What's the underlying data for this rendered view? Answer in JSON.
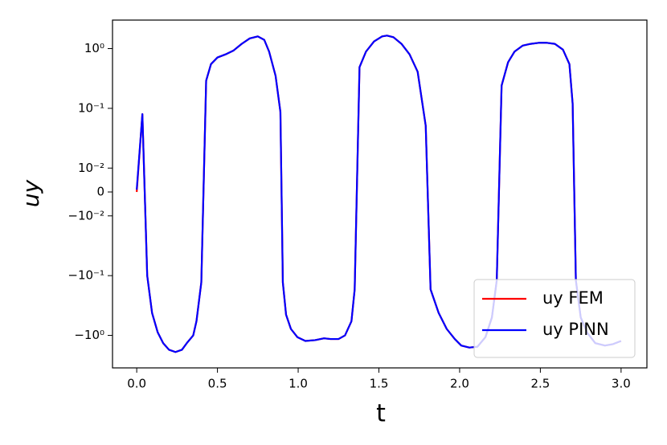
{
  "chart_data": {
    "type": "line",
    "xlabel": "t",
    "ylabel": "uy",
    "x": [
      0,
      0.035,
      0.065,
      0.095,
      0.13,
      0.164,
      0.2,
      0.24,
      0.28,
      0.31,
      0.35,
      0.37,
      0.4,
      0.43,
      0.46,
      0.5,
      0.55,
      0.6,
      0.65,
      0.7,
      0.75,
      0.79,
      0.82,
      0.86,
      0.89,
      0.905,
      0.925,
      0.955,
      0.995,
      1.045,
      1.105,
      1.16,
      1.2,
      1.25,
      1.29,
      1.33,
      1.35,
      1.38,
      1.42,
      1.47,
      1.52,
      1.55,
      1.59,
      1.64,
      1.69,
      1.74,
      1.79,
      1.82,
      1.87,
      1.92,
      1.97,
      2.01,
      2.06,
      2.11,
      2.16,
      2.2,
      2.23,
      2.26,
      2.3,
      2.34,
      2.39,
      2.44,
      2.49,
      2.54,
      2.59,
      2.64,
      2.68,
      2.7,
      2.72,
      2.75,
      2.79,
      2.84,
      2.9,
      2.95,
      3.0
    ],
    "series": [
      {
        "name": "uy FEM",
        "color": "#ff0000",
        "values": [
          0,
          0.08,
          -0.1,
          -0.42,
          -0.89,
          -1.35,
          -1.74,
          -1.9,
          -1.74,
          -1.35,
          -1.0,
          -0.58,
          -0.13,
          0.29,
          0.55,
          0.71,
          0.8,
          0.93,
          1.2,
          1.48,
          1.6,
          1.4,
          0.89,
          0.35,
          0.087,
          -0.13,
          -0.45,
          -0.78,
          -1.07,
          -1.24,
          -1.2,
          -1.12,
          -1.15,
          -1.15,
          -1.0,
          -0.58,
          -0.17,
          0.49,
          0.89,
          1.32,
          1.6,
          1.65,
          1.55,
          1.2,
          0.8,
          0.41,
          0.051,
          -0.17,
          -0.42,
          -0.78,
          -1.15,
          -1.48,
          -1.6,
          -1.55,
          -1.07,
          -0.5,
          -0.12,
          0.24,
          0.59,
          0.89,
          1.12,
          1.2,
          1.25,
          1.25,
          1.2,
          0.96,
          0.55,
          0.12,
          -0.12,
          -0.5,
          -0.9,
          -1.35,
          -1.48,
          -1.4,
          -1.24
        ]
      },
      {
        "name": "uy PINN",
        "color": "#0000ff",
        "values": [
          0.001,
          0.08,
          -0.1,
          -0.42,
          -0.89,
          -1.35,
          -1.74,
          -1.9,
          -1.74,
          -1.35,
          -1.0,
          -0.58,
          -0.13,
          0.29,
          0.55,
          0.71,
          0.8,
          0.93,
          1.2,
          1.48,
          1.6,
          1.4,
          0.89,
          0.35,
          0.087,
          -0.13,
          -0.45,
          -0.78,
          -1.07,
          -1.24,
          -1.2,
          -1.12,
          -1.15,
          -1.15,
          -1.0,
          -0.58,
          -0.17,
          0.49,
          0.89,
          1.32,
          1.6,
          1.65,
          1.55,
          1.2,
          0.8,
          0.41,
          0.051,
          -0.17,
          -0.42,
          -0.78,
          -1.15,
          -1.48,
          -1.6,
          -1.55,
          -1.07,
          -0.5,
          -0.12,
          0.24,
          0.59,
          0.89,
          1.12,
          1.2,
          1.25,
          1.25,
          1.2,
          0.96,
          0.55,
          0.12,
          -0.12,
          -0.5,
          -0.9,
          -1.35,
          -1.48,
          -1.4,
          -1.24
        ]
      }
    ],
    "xlim": [
      -0.15,
      3.16
    ],
    "xticks": [
      {
        "value": 0,
        "label": "0.0"
      },
      0.5,
      {
        "value": 1,
        "label": "1.0"
      },
      1.5,
      {
        "value": 2,
        "label": "2.0"
      },
      2.5,
      {
        "value": 3,
        "label": "3.0"
      }
    ],
    "yscale": "symlog",
    "linthresh": 0.01,
    "linscale": 0.36,
    "ylim": [
      -3.5,
      3.0
    ],
    "yticks": [
      {
        "value": 1,
        "label": "10⁰"
      },
      {
        "value": 0.1,
        "label": "10⁻¹"
      },
      {
        "value": 0.01,
        "label": "10⁻²"
      },
      0,
      {
        "value": -0.01,
        "label": "−10⁻²"
      },
      {
        "value": -0.1,
        "label": "−10⁻¹"
      },
      {
        "value": -1,
        "label": "−10⁰"
      }
    ],
    "legend": "lower right",
    "grid": false
  }
}
